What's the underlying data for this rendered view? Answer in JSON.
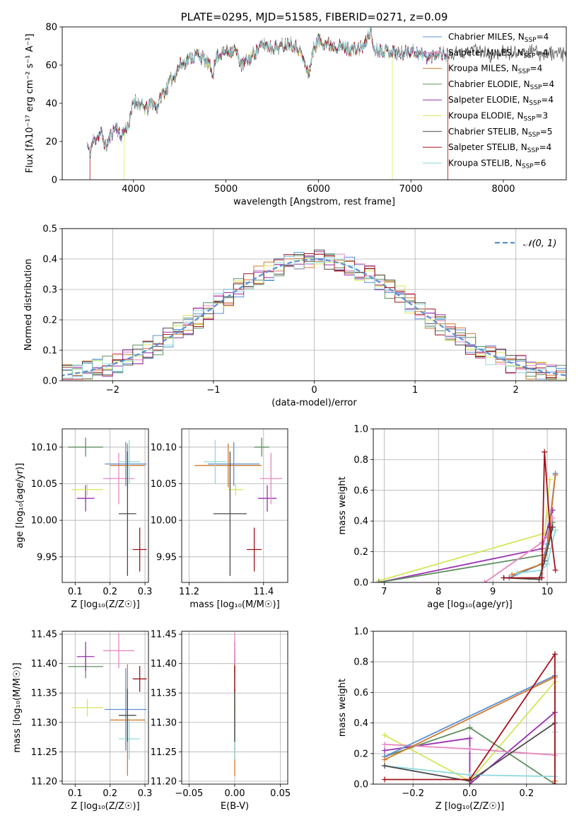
{
  "colors": {
    "chabrier_miles": "#5a8fd4",
    "salpeter_miles": "#e887c2",
    "kroupa_miles": "#d37a2a",
    "chabrier_elodie": "#5f8f5e",
    "salpeter_elodie": "#9a2fb0",
    "kroupa_elodie": "#d5e65a",
    "chabrier_stelib": "#4a4a4a",
    "salpeter_stelib": "#a3121c",
    "kroupa_stelib": "#8fd9dc",
    "normal": "#5a8fd4",
    "grid": "#b0b0b0"
  },
  "legend_spectrum": [
    {
      "pre": "Chabrier MILES, N",
      "sub": "SSP",
      "post": "=4",
      "color_key": "chabrier_miles"
    },
    {
      "pre": "Salpeter MILES, N",
      "sub": "SSP",
      "post": "=4",
      "color_key": "salpeter_miles"
    },
    {
      "pre": "Kroupa MILES, N",
      "sub": "SSP",
      "post": "=4",
      "color_key": "kroupa_miles"
    },
    {
      "pre": "Chabrier ELODIE, N",
      "sub": "SSP",
      "post": "=4",
      "color_key": "chabrier_elodie"
    },
    {
      "pre": "Salpeter ELODIE, N",
      "sub": "SSP",
      "post": "=4",
      "color_key": "salpeter_elodie"
    },
    {
      "pre": "Kroupa ELODIE, N",
      "sub": "SSP",
      "post": "=3",
      "color_key": "kroupa_elodie"
    },
    {
      "pre": "Chabrier STELIB, N",
      "sub": "SSP",
      "post": "=5",
      "color_key": "chabrier_stelib"
    },
    {
      "pre": "Salpeter STELIB, N",
      "sub": "SSP",
      "post": "=4",
      "color_key": "salpeter_stelib"
    },
    {
      "pre": "Kroupa STELIB, N",
      "sub": "SSP",
      "post": "=6",
      "color_key": "kroupa_stelib"
    }
  ],
  "chart_data": [
    {
      "id": "spectrum",
      "type": "line",
      "title": "PLATE=0295, MJD=51585, FIBERID=0271, z=0.09",
      "xlabel": "wavelength [Angstrom, rest frame]",
      "ylabel": "Flux [fλ10⁻¹⁷ erg cm⁻² s⁻¹ A⁻¹]",
      "xlim": [
        3230,
        8680
      ],
      "ylim": [
        0,
        80
      ],
      "xticks": [
        4000,
        5000,
        6000,
        7000,
        8000
      ],
      "yticks": [
        0,
        20,
        40,
        60,
        80
      ],
      "grid": false,
      "legend": "top-right",
      "data_envelope": {
        "x": [
          3500,
          3530,
          3560,
          3600,
          3650,
          3700,
          3760,
          3820,
          3860,
          3900,
          3960,
          4000,
          4050,
          4100,
          4150,
          4200,
          4260,
          4300,
          4350,
          4400,
          4450,
          4500,
          4600,
          4700,
          4800,
          4860,
          4900,
          5000,
          5100,
          5170,
          5250,
          5300,
          5400,
          5500,
          5600,
          5700,
          5800,
          5890,
          5950,
          6000,
          6100,
          6200,
          6300,
          6400,
          6500,
          6563,
          6600,
          6700,
          6800,
          6900,
          7000,
          7100,
          7200,
          7300,
          7400,
          7500,
          7600,
          7700,
          7800,
          7900,
          8000,
          8100,
          8200,
          8300,
          8400,
          8500,
          8680
        ],
        "y": [
          18,
          14,
          20,
          22,
          25,
          17,
          24,
          28,
          22,
          26,
          30,
          42,
          40,
          38,
          37,
          40,
          38,
          44,
          47,
          52,
          55,
          60,
          63,
          66,
          61,
          56,
          65,
          67,
          68,
          60,
          63,
          66,
          71,
          69,
          70,
          72,
          68,
          55,
          69,
          73,
          71,
          70,
          69,
          68,
          70,
          79,
          68,
          68,
          67,
          66,
          68,
          66,
          64,
          67,
          65,
          66,
          67,
          68,
          66,
          65,
          67,
          66,
          68,
          67,
          66,
          66,
          66
        ]
      }
    },
    {
      "id": "residuals",
      "type": "line",
      "xlabel": "(data-model)/error",
      "ylabel": "Normed distribution",
      "xlim": [
        -2.5,
        2.5
      ],
      "ylim": [
        0,
        0.5
      ],
      "xticks": [
        -2,
        -1,
        0,
        1,
        2
      ],
      "yticks": [
        0.0,
        0.1,
        0.2,
        0.3,
        0.4,
        0.5
      ],
      "grid": true,
      "legend": "top-right",
      "legend_label": "𝒩(0, 1)",
      "gaussian": {
        "mu": 0,
        "sigma": 1
      }
    },
    {
      "id": "age_vs_Z",
      "type": "scatter",
      "xlabel": "Z [log₁₀(Z/Z☉)]",
      "ylabel": "age  [log₁₀(age/yr)]",
      "xlim": [
        0.063,
        0.31
      ],
      "ylim": [
        9.915,
        10.125
      ],
      "xticks": [
        0.1,
        0.2,
        0.3
      ],
      "yticks": [
        9.95,
        10.0,
        10.05,
        10.1
      ],
      "grid": true,
      "points": [
        {
          "key": "chabrier_elodie",
          "x": 0.13,
          "xerr": 0.05,
          "y": 10.1,
          "yerr": 0.013
        },
        {
          "key": "salpeter_elodie",
          "x": 0.13,
          "xerr": 0.025,
          "y": 10.03,
          "yerr": 0.018
        },
        {
          "key": "kroupa_elodie",
          "x": 0.135,
          "xerr": 0.045,
          "y": 10.042,
          "yerr": 0.008
        },
        {
          "key": "salpeter_miles",
          "x": 0.225,
          "xerr": 0.045,
          "y": 10.057,
          "yerr": 0.035
        },
        {
          "key": "chabrier_miles",
          "x": 0.245,
          "xerr": 0.06,
          "y": 10.077,
          "yerr": 0.03
        },
        {
          "key": "kroupa_miles",
          "x": 0.25,
          "xerr": 0.05,
          "y": 10.075,
          "yerr": 0.03
        },
        {
          "key": "kroupa_stelib",
          "x": 0.255,
          "xerr": 0.03,
          "y": 10.08,
          "yerr": 0.03
        },
        {
          "key": "chabrier_stelib",
          "x": 0.25,
          "xerr": 0.025,
          "y": 10.009,
          "yerr": 0.085
        },
        {
          "key": "salpeter_stelib",
          "x": 0.285,
          "xerr": 0.02,
          "y": 9.96,
          "yerr": 0.03
        }
      ]
    },
    {
      "id": "age_vs_mass",
      "type": "scatter",
      "xlabel": "mass [log₁₀(M/M☉)]",
      "xlim": [
        11.18,
        11.465
      ],
      "ylim": [
        9.915,
        10.125
      ],
      "xticks": [
        11.2,
        11.4
      ],
      "yticks": [
        9.95,
        10.0,
        10.05,
        10.1
      ],
      "grid": true,
      "points": [
        {
          "key": "chabrier_elodie",
          "x": 11.395,
          "xerr": 0.02,
          "y": 10.1,
          "yerr": 0.013
        },
        {
          "key": "salpeter_elodie",
          "x": 11.41,
          "xerr": 0.025,
          "y": 10.03,
          "yerr": 0.018
        },
        {
          "key": "kroupa_elodie",
          "x": 11.325,
          "xerr": 0.02,
          "y": 10.042,
          "yerr": 0.008
        },
        {
          "key": "salpeter_miles",
          "x": 11.42,
          "xerr": 0.03,
          "y": 10.057,
          "yerr": 0.035
        },
        {
          "key": "chabrier_miles",
          "x": 11.32,
          "xerr": 0.07,
          "y": 10.077,
          "yerr": 0.03
        },
        {
          "key": "kroupa_miles",
          "x": 11.305,
          "xerr": 0.09,
          "y": 10.075,
          "yerr": 0.03
        },
        {
          "key": "kroupa_stelib",
          "x": 11.27,
          "xerr": 0.03,
          "y": 10.08,
          "yerr": 0.03
        },
        {
          "key": "chabrier_stelib",
          "x": 11.31,
          "xerr": 0.045,
          "y": 10.009,
          "yerr": 0.085
        },
        {
          "key": "salpeter_stelib",
          "x": 11.375,
          "xerr": 0.02,
          "y": 9.96,
          "yerr": 0.03
        }
      ]
    },
    {
      "id": "weight_vs_age",
      "type": "line",
      "xlabel": "age  [log₁₀(age/yr)]",
      "ylabel": "mass weight",
      "xlim": [
        6.8,
        10.35
      ],
      "ylim": [
        0,
        1.0
      ],
      "xticks": [
        7,
        8,
        9,
        10
      ],
      "yticks": [
        0.0,
        0.2,
        0.4,
        0.6,
        0.8,
        1.0
      ],
      "grid": true,
      "series": [
        {
          "key": "kroupa_elodie",
          "x": [
            6.9,
            9.95,
            10.05
          ],
          "y": [
            0.01,
            0.32,
            0.67
          ]
        },
        {
          "key": "salpeter_elodie",
          "x": [
            6.9,
            9.9,
            10.1
          ],
          "y": [
            0.0,
            0.22,
            0.47
          ]
        },
        {
          "key": "chabrier_elodie",
          "x": [
            6.9,
            9.95,
            10.1
          ],
          "y": [
            0.0,
            0.18,
            0.39
          ]
        },
        {
          "key": "salpeter_miles",
          "x": [
            8.85,
            9.9,
            10.0,
            10.1
          ],
          "y": [
            0.0,
            0.26,
            0.3,
            0.42
          ]
        },
        {
          "key": "chabrier_miles",
          "x": [
            9.3,
            9.9,
            10.0,
            10.15
          ],
          "y": [
            0.03,
            0.12,
            0.25,
            0.71
          ]
        },
        {
          "key": "kroupa_miles",
          "x": [
            9.35,
            9.9,
            10.0,
            10.15
          ],
          "y": [
            0.05,
            0.12,
            0.22,
            0.7
          ]
        },
        {
          "key": "kroupa_stelib",
          "x": [
            9.45,
            9.9,
            10.0,
            10.15
          ],
          "y": [
            0.06,
            0.08,
            0.12,
            0.34
          ]
        },
        {
          "key": "chabrier_stelib",
          "x": [
            9.2,
            9.85,
            9.95,
            10.1
          ],
          "y": [
            0.03,
            0.02,
            0.14,
            0.36
          ]
        },
        {
          "key": "salpeter_stelib",
          "x": [
            9.2,
            9.9,
            9.95,
            10.05,
            10.15
          ],
          "y": [
            0.03,
            0.03,
            0.85,
            0.36,
            0.08
          ]
        }
      ]
    },
    {
      "id": "mass_vs_Z",
      "type": "scatter",
      "xlabel": "Z [log₁₀(Z/Z☉)]",
      "ylabel": "mass [log₁₀(M/M☉)]",
      "xlim": [
        0.063,
        0.31
      ],
      "ylim": [
        11.195,
        11.455
      ],
      "xticks": [
        0.1,
        0.2,
        0.3
      ],
      "yticks": [
        11.2,
        11.25,
        11.3,
        11.35,
        11.4,
        11.45
      ],
      "grid": true,
      "points": [
        {
          "key": "chabrier_elodie",
          "x": 0.13,
          "xerr": 0.05,
          "y": 11.395,
          "yerr": 0.02
        },
        {
          "key": "salpeter_elodie",
          "x": 0.13,
          "xerr": 0.025,
          "y": 11.412,
          "yerr": 0.025
        },
        {
          "key": "kroupa_elodie",
          "x": 0.135,
          "xerr": 0.045,
          "y": 11.325,
          "yerr": 0.015
        },
        {
          "key": "salpeter_miles",
          "x": 0.225,
          "xerr": 0.045,
          "y": 11.422,
          "yerr": 0.03
        },
        {
          "key": "chabrier_miles",
          "x": 0.245,
          "xerr": 0.06,
          "y": 11.322,
          "yerr": 0.07
        },
        {
          "key": "kroupa_miles",
          "x": 0.25,
          "xerr": 0.05,
          "y": 11.304,
          "yerr": 0.095
        },
        {
          "key": "kroupa_stelib",
          "x": 0.255,
          "xerr": 0.03,
          "y": 11.272,
          "yerr": 0.035
        },
        {
          "key": "chabrier_stelib",
          "x": 0.25,
          "xerr": 0.025,
          "y": 11.312,
          "yerr": 0.045
        },
        {
          "key": "salpeter_stelib",
          "x": 0.285,
          "xerr": 0.02,
          "y": 11.374,
          "yerr": 0.022
        }
      ]
    },
    {
      "id": "mass_vs_ebv",
      "type": "scatter",
      "xlabel": "E(B-V)",
      "xlim": [
        -0.058,
        0.058
      ],
      "ylim": [
        11.195,
        11.455
      ],
      "xticks": [
        -0.05,
        0.0,
        0.05
      ],
      "yticks": [
        11.2,
        11.25,
        11.3,
        11.35,
        11.4,
        11.45
      ],
      "grid": true,
      "points": [
        {
          "key": "chabrier_elodie",
          "x": 0,
          "xerr": 0,
          "y": 11.395,
          "yerr": 0.02
        },
        {
          "key": "salpeter_elodie",
          "x": 0,
          "xerr": 0,
          "y": 11.412,
          "yerr": 0.025
        },
        {
          "key": "kroupa_elodie",
          "x": 0,
          "xerr": 0,
          "y": 11.325,
          "yerr": 0.015
        },
        {
          "key": "salpeter_miles",
          "x": 0,
          "xerr": 0,
          "y": 11.422,
          "yerr": 0.03
        },
        {
          "key": "chabrier_miles",
          "x": 0,
          "xerr": 0,
          "y": 11.322,
          "yerr": 0.07
        },
        {
          "key": "kroupa_miles",
          "x": 0,
          "xerr": 0,
          "y": 11.304,
          "yerr": 0.095
        },
        {
          "key": "kroupa_stelib",
          "x": 0,
          "xerr": 0,
          "y": 11.272,
          "yerr": 0.035
        },
        {
          "key": "chabrier_stelib",
          "x": 0,
          "xerr": 0,
          "y": 11.312,
          "yerr": 0.045
        },
        {
          "key": "salpeter_stelib",
          "x": 0,
          "xerr": 0,
          "y": 11.374,
          "yerr": 0.022
        }
      ]
    },
    {
      "id": "weight_vs_Z",
      "type": "line",
      "xlabel": "Z [log₁₀(Z/Z☉)]",
      "ylabel": "mass weight",
      "xlim": [
        -0.34,
        0.34
      ],
      "ylim": [
        0,
        1.0
      ],
      "xticks": [
        -0.2,
        0.0,
        0.2
      ],
      "yticks": [
        0.0,
        0.2,
        0.4,
        0.6,
        0.8,
        1.0
      ],
      "grid": true,
      "series": [
        {
          "key": "kroupa_elodie",
          "x": [
            -0.3,
            0.0,
            0.3
          ],
          "y": [
            0.32,
            0.02,
            0.67
          ]
        },
        {
          "key": "salpeter_elodie",
          "x": [
            -0.3,
            0.0,
            0.0,
            0.3
          ],
          "y": [
            0.22,
            0.3,
            0.0,
            0.47
          ]
        },
        {
          "key": "chabrier_elodie",
          "x": [
            -0.3,
            0.0,
            0.3
          ],
          "y": [
            0.18,
            0.37,
            0.0
          ]
        },
        {
          "key": "salpeter_miles",
          "x": [
            -0.3,
            0.0,
            0.3
          ],
          "y": [
            0.26,
            0.23,
            0.19
          ]
        },
        {
          "key": "chabrier_miles",
          "x": [
            -0.3,
            0.3
          ],
          "y": [
            0.18,
            0.71
          ]
        },
        {
          "key": "kroupa_miles",
          "x": [
            -0.3,
            0.3,
            0.3
          ],
          "y": [
            0.16,
            0.7,
            0.02
          ]
        },
        {
          "key": "kroupa_stelib",
          "x": [
            -0.3,
            0.0,
            0.3,
            0.3
          ],
          "y": [
            0.12,
            0.06,
            0.05,
            0.34
          ]
        },
        {
          "key": "chabrier_stelib",
          "x": [
            -0.3,
            0.0,
            0.3
          ],
          "y": [
            0.12,
            0.02,
            0.4
          ]
        },
        {
          "key": "salpeter_stelib",
          "x": [
            -0.3,
            0.0,
            0.3,
            0.3
          ],
          "y": [
            0.03,
            0.03,
            0.85,
            0.0
          ]
        }
      ]
    }
  ]
}
